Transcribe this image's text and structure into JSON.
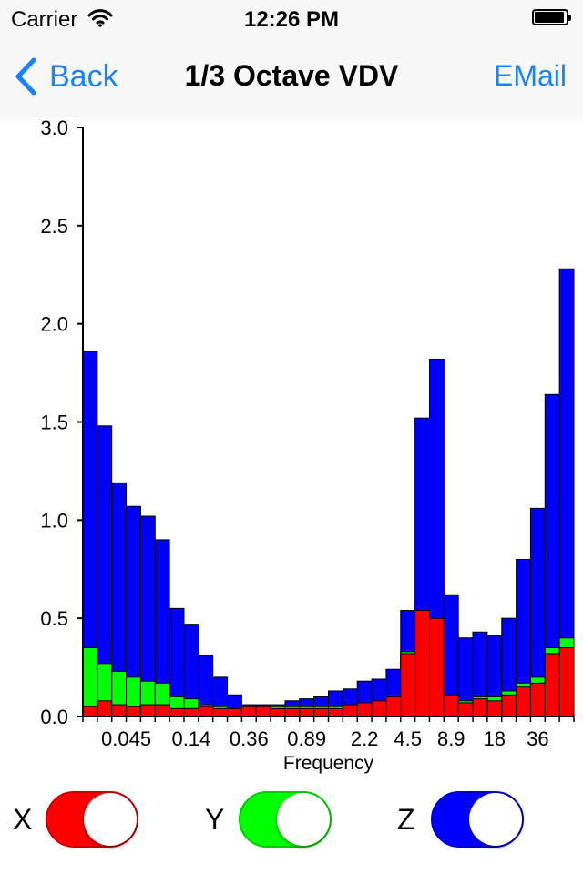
{
  "status_bar": {
    "carrier": "Carrier",
    "time": "12:26 PM",
    "battery_level": 0.95
  },
  "nav": {
    "back_label": "Back",
    "title": "1/3 Octave VDV",
    "email_label": "EMail"
  },
  "colors": {
    "accent": "#1a82fb",
    "x": "#ff0000",
    "y": "#00ff00",
    "z": "#0000ff"
  },
  "toggles": [
    {
      "label": "X",
      "on": true,
      "color": "#ff0000"
    },
    {
      "label": "Y",
      "on": true,
      "color": "#00ff00"
    },
    {
      "label": "Z",
      "on": true,
      "color": "#0000ff"
    }
  ],
  "chart_data": {
    "type": "bar",
    "stacked": "overlay",
    "xlabel": "Frequency",
    "ylabel": "",
    "ylim": [
      0,
      3.0
    ],
    "yticks": [
      "0.0",
      "0.5",
      "1.0",
      "1.5",
      "2.0",
      "2.5",
      "3.0"
    ],
    "xtick_labels": [
      {
        "bin": 2.5,
        "label": "0.045"
      },
      {
        "bin": 7,
        "label": "0.14"
      },
      {
        "bin": 11,
        "label": "0.36"
      },
      {
        "bin": 15,
        "label": "0.89"
      },
      {
        "bin": 19,
        "label": "2.2"
      },
      {
        "bin": 22,
        "label": "4.5"
      },
      {
        "bin": 25,
        "label": "8.9"
      },
      {
        "bin": 28,
        "label": "18"
      },
      {
        "bin": 31,
        "label": "36"
      }
    ],
    "series": [
      {
        "name": "Z",
        "color": "#0000ff",
        "values": [
          1.86,
          1.48,
          1.19,
          1.07,
          1.02,
          0.9,
          0.55,
          0.47,
          0.31,
          0.2,
          0.11,
          0.06,
          0.06,
          0.06,
          0.08,
          0.09,
          0.1,
          0.13,
          0.14,
          0.18,
          0.19,
          0.24,
          0.54,
          1.52,
          1.82,
          0.62,
          0.4,
          0.43,
          0.41,
          0.5,
          0.8,
          1.06,
          1.64,
          2.28
        ]
      },
      {
        "name": "Y",
        "color": "#00ff00",
        "values": [
          0.35,
          0.27,
          0.23,
          0.2,
          0.18,
          0.17,
          0.1,
          0.09,
          0.06,
          0.05,
          0.04,
          0.05,
          0.05,
          0.05,
          0.05,
          0.05,
          0.05,
          0.05,
          0.06,
          0.06,
          0.07,
          0.1,
          0.33,
          0.53,
          0.49,
          0.11,
          0.08,
          0.1,
          0.1,
          0.13,
          0.17,
          0.2,
          0.35,
          0.4
        ]
      },
      {
        "name": "X",
        "color": "#ff0000",
        "values": [
          0.05,
          0.08,
          0.06,
          0.05,
          0.06,
          0.06,
          0.04,
          0.04,
          0.05,
          0.04,
          0.04,
          0.05,
          0.05,
          0.04,
          0.04,
          0.04,
          0.04,
          0.04,
          0.06,
          0.07,
          0.08,
          0.1,
          0.32,
          0.54,
          0.5,
          0.11,
          0.07,
          0.09,
          0.08,
          0.11,
          0.15,
          0.17,
          0.32,
          0.35
        ]
      }
    ]
  }
}
